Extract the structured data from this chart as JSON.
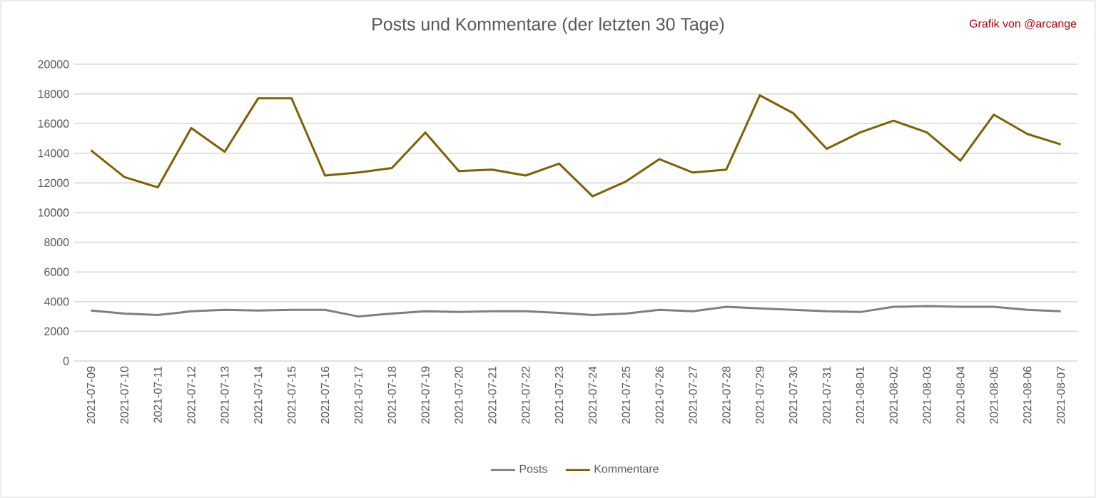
{
  "chart_data": {
    "type": "line",
    "title": "Posts und Kommentare (der letzten 30 Tage)",
    "annotations": [
      "Grafik von @arcange"
    ],
    "categories": [
      "2021-07-09",
      "2021-07-10",
      "2021-07-11",
      "2021-07-12",
      "2021-07-13",
      "2021-07-14",
      "2021-07-15",
      "2021-07-16",
      "2021-07-17",
      "2021-07-18",
      "2021-07-19",
      "2021-07-20",
      "2021-07-21",
      "2021-07-22",
      "2021-07-23",
      "2021-07-24",
      "2021-07-25",
      "2021-07-26",
      "2021-07-27",
      "2021-07-28",
      "2021-07-29",
      "2021-07-30",
      "2021-07-31",
      "2021-08-01",
      "2021-08-02",
      "2021-08-03",
      "2021-08-04",
      "2021-08-05",
      "2021-08-06",
      "2021-08-07"
    ],
    "series": [
      {
        "name": "Posts",
        "color": "#7f7f7f",
        "values": [
          3400,
          3200,
          3100,
          3350,
          3450,
          3400,
          3450,
          3450,
          3000,
          3200,
          3350,
          3300,
          3350,
          3350,
          3250,
          3100,
          3200,
          3450,
          3350,
          3650,
          3550,
          3450,
          3350,
          3300,
          3650,
          3700,
          3650,
          3650,
          3450,
          3350
        ]
      },
      {
        "name": "Kommentare",
        "color": "#7f6000",
        "values": [
          14200,
          12400,
          11700,
          15700,
          14100,
          17700,
          17700,
          12500,
          12700,
          13000,
          15400,
          12800,
          12900,
          12500,
          13300,
          11100,
          12100,
          13600,
          12700,
          12900,
          17900,
          16700,
          14300,
          15400,
          16200,
          15400,
          13500,
          16600,
          15300,
          14600
        ]
      }
    ],
    "ylim": [
      0,
      20000
    ],
    "yticks": [
      0,
      2000,
      4000,
      6000,
      8000,
      10000,
      12000,
      14000,
      16000,
      18000,
      20000
    ],
    "grid": "y",
    "legend": "bottom",
    "marker": "none",
    "line_style": "solid"
  }
}
